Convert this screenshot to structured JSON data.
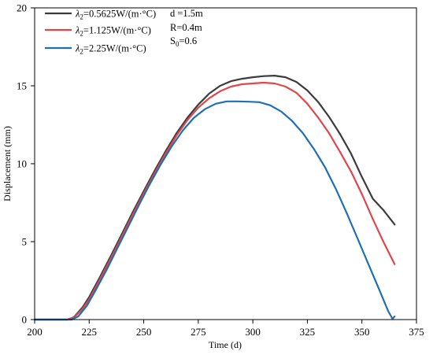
{
  "chart_data": {
    "type": "line",
    "title": "",
    "xlabel": "Time (d)",
    "ylabel": "Displacement (mm)",
    "xlim": [
      200,
      375
    ],
    "ylim": [
      0,
      20
    ],
    "xticks": [
      200,
      225,
      250,
      275,
      300,
      325,
      350,
      375
    ],
    "yticks": [
      0,
      5,
      10,
      15,
      20
    ],
    "legend_position": "top-left",
    "grid": false,
    "series": [
      {
        "name": "λ2=0.5625W/(m·°C)",
        "legend_symbol": "λ",
        "legend_sub": "2",
        "legend_rest": "=0.5625W/(m·°C)",
        "color": "#3c3c3c",
        "points": [
          [
            200,
            0
          ],
          [
            215,
            0
          ],
          [
            218,
            0.15
          ],
          [
            222,
            0.8
          ],
          [
            225,
            1.45
          ],
          [
            230,
            2.75
          ],
          [
            235,
            4.1
          ],
          [
            240,
            5.5
          ],
          [
            245,
            6.9
          ],
          [
            250,
            8.25
          ],
          [
            255,
            9.55
          ],
          [
            260,
            10.8
          ],
          [
            265,
            11.95
          ],
          [
            270,
            12.95
          ],
          [
            275,
            13.8
          ],
          [
            280,
            14.5
          ],
          [
            285,
            15.0
          ],
          [
            290,
            15.3
          ],
          [
            295,
            15.45
          ],
          [
            300,
            15.55
          ],
          [
            305,
            15.62
          ],
          [
            310,
            15.65
          ],
          [
            315,
            15.55
          ],
          [
            320,
            15.25
          ],
          [
            325,
            14.7
          ],
          [
            330,
            13.95
          ],
          [
            335,
            13.0
          ],
          [
            340,
            11.9
          ],
          [
            345,
            10.65
          ],
          [
            350,
            9.15
          ],
          [
            355,
            7.75
          ],
          [
            360,
            7.0
          ],
          [
            365,
            6.1
          ]
        ]
      },
      {
        "name": "λ2=1.125W/(m·°C)",
        "legend_symbol": "λ",
        "legend_sub": "2",
        "legend_rest": "=1.125W/(m·°C)",
        "color": "#e0474c",
        "points": [
          [
            200,
            0
          ],
          [
            215,
            0
          ],
          [
            218,
            0.12
          ],
          [
            222,
            0.7
          ],
          [
            225,
            1.3
          ],
          [
            230,
            2.6
          ],
          [
            235,
            3.95
          ],
          [
            240,
            5.35
          ],
          [
            245,
            6.75
          ],
          [
            250,
            8.1
          ],
          [
            255,
            9.4
          ],
          [
            260,
            10.65
          ],
          [
            265,
            11.8
          ],
          [
            270,
            12.8
          ],
          [
            275,
            13.6
          ],
          [
            280,
            14.2
          ],
          [
            285,
            14.65
          ],
          [
            290,
            14.95
          ],
          [
            295,
            15.1
          ],
          [
            300,
            15.15
          ],
          [
            305,
            15.2
          ],
          [
            310,
            15.15
          ],
          [
            315,
            14.95
          ],
          [
            320,
            14.55
          ],
          [
            325,
            13.85
          ],
          [
            330,
            12.95
          ],
          [
            335,
            11.95
          ],
          [
            340,
            10.75
          ],
          [
            345,
            9.5
          ],
          [
            350,
            8.05
          ],
          [
            355,
            6.45
          ],
          [
            360,
            4.95
          ],
          [
            365,
            3.55
          ]
        ]
      },
      {
        "name": "λ2=2.25W/(m·°C)",
        "legend_symbol": "λ",
        "legend_sub": "2",
        "legend_rest": "=2.25W/(m·°C)",
        "color": "#1f6fb4",
        "points": [
          [
            200,
            0
          ],
          [
            217,
            0
          ],
          [
            220,
            0.2
          ],
          [
            224,
            0.9
          ],
          [
            228,
            1.9
          ],
          [
            233,
            3.2
          ],
          [
            238,
            4.6
          ],
          [
            243,
            6.0
          ],
          [
            248,
            7.4
          ],
          [
            253,
            8.75
          ],
          [
            258,
            10.0
          ],
          [
            263,
            11.15
          ],
          [
            268,
            12.15
          ],
          [
            273,
            12.95
          ],
          [
            278,
            13.5
          ],
          [
            283,
            13.85
          ],
          [
            288,
            14.0
          ],
          [
            293,
            14.0
          ],
          [
            298,
            13.98
          ],
          [
            303,
            13.95
          ],
          [
            308,
            13.75
          ],
          [
            313,
            13.35
          ],
          [
            318,
            12.75
          ],
          [
            323,
            11.95
          ],
          [
            328,
            10.95
          ],
          [
            333,
            9.8
          ],
          [
            338,
            8.4
          ],
          [
            343,
            6.85
          ],
          [
            348,
            5.2
          ],
          [
            353,
            3.55
          ],
          [
            358,
            1.9
          ],
          [
            362,
            0.55
          ],
          [
            364,
            0.05
          ],
          [
            365,
            0.2
          ]
        ]
      }
    ],
    "annotations": [
      "d =1.5m",
      "R=0.4m",
      "S0=0.6"
    ],
    "annotation_s0": {
      "main": "S",
      "sub": "0",
      "rest": "=0.6"
    }
  }
}
